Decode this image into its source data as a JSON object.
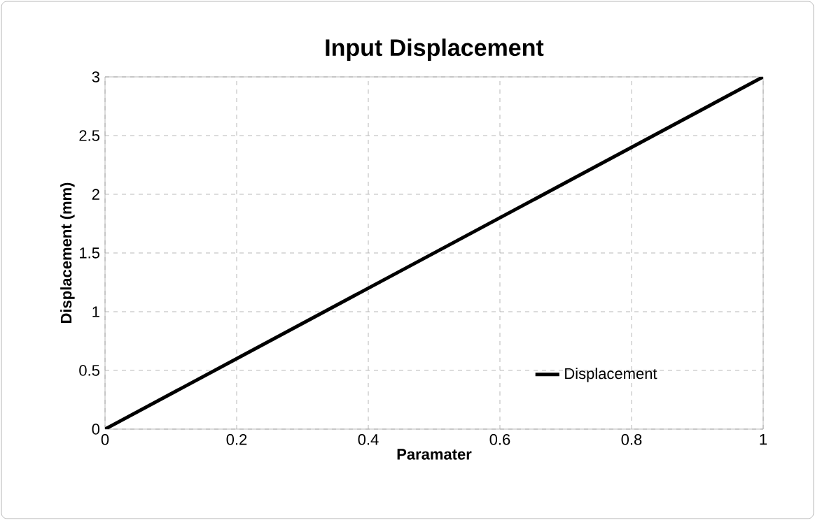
{
  "chart_data": {
    "type": "line",
    "title": "Input Displacement",
    "xlabel": "Paramater",
    "ylabel": "Displacement (mm)",
    "series": [
      {
        "name": "Displacement",
        "color": "#000000",
        "x": [
          0,
          1
        ],
        "values": [
          0,
          3
        ]
      }
    ],
    "xlim": [
      0,
      1
    ],
    "ylim": [
      0,
      3
    ],
    "xticks": [
      0,
      0.2,
      0.4,
      0.6,
      0.8,
      1
    ],
    "yticks": [
      0,
      0.5,
      1,
      1.5,
      2,
      2.5,
      3
    ],
    "grid": true,
    "legend": "bottom right",
    "marker": "none",
    "line_style": "solid"
  }
}
